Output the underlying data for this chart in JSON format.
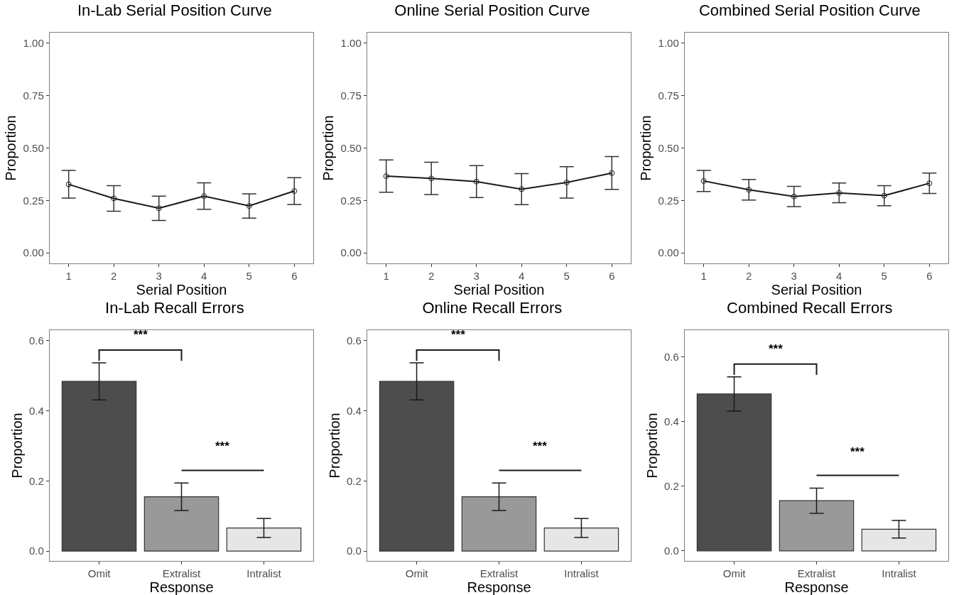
{
  "chart_data": [
    {
      "type": "line",
      "title": "In-Lab Serial Position Curve",
      "xlabel": "Serial Position",
      "ylabel": "Proportion",
      "x": [
        1,
        2,
        3,
        4,
        5,
        6
      ],
      "series": [
        {
          "color": "#1a1a1a",
          "values": [
            0.327,
            0.26,
            0.213,
            0.271,
            0.224,
            0.295
          ],
          "errors": [
            0.066,
            0.061,
            0.058,
            0.063,
            0.058,
            0.064
          ]
        }
      ],
      "xlim": [
        0.58,
        6.42
      ],
      "xticks": [
        1,
        2,
        3,
        4,
        5,
        6
      ],
      "ylim": [
        -0.05,
        1.05
      ],
      "yticks": [
        {
          "value": 0,
          "label": "0.00"
        },
        0.25,
        {
          "value": 0.5,
          "label": "0.50"
        },
        0.75,
        {
          "value": 1,
          "label": "1.00"
        }
      ],
      "marker": "circle",
      "line_style": "solid"
    },
    {
      "type": "line",
      "title": "Online Serial Position Curve",
      "xlabel": "Serial Position",
      "ylabel": "Proportion",
      "x": [
        1,
        2,
        3,
        4,
        5,
        6
      ],
      "series": [
        {
          "color": "#1a1a1a",
          "values": [
            0.366,
            0.355,
            0.34,
            0.304,
            0.336,
            0.381
          ],
          "errors": [
            0.077,
            0.077,
            0.076,
            0.074,
            0.075,
            0.078
          ]
        }
      ],
      "xlim": [
        0.58,
        6.42
      ],
      "xticks": [
        1,
        2,
        3,
        4,
        5,
        6
      ],
      "ylim": [
        -0.05,
        1.05
      ],
      "yticks": [
        {
          "value": 0,
          "label": "0.00"
        },
        0.25,
        {
          "value": 0.5,
          "label": "0.50"
        },
        0.75,
        {
          "value": 1,
          "label": "1.00"
        }
      ],
      "marker": "circle",
      "line_style": "solid"
    },
    {
      "type": "line",
      "title": "Combined Serial Position Curve",
      "xlabel": "Serial Position",
      "ylabel": "Proportion",
      "x": [
        1,
        2,
        3,
        4,
        5,
        6
      ],
      "series": [
        {
          "color": "#1a1a1a",
          "values": [
            0.343,
            0.301,
            0.269,
            0.286,
            0.273,
            0.332
          ],
          "errors": [
            0.05,
            0.049,
            0.048,
            0.047,
            0.048,
            0.049
          ]
        }
      ],
      "xlim": [
        0.58,
        6.42
      ],
      "xticks": [
        1,
        2,
        3,
        4,
        5,
        6
      ],
      "ylim": [
        -0.05,
        1.05
      ],
      "yticks": [
        {
          "value": 0,
          "label": "0.00"
        },
        0.25,
        {
          "value": 0.5,
          "label": "0.50"
        },
        0.75,
        {
          "value": 1,
          "label": "1.00"
        }
      ],
      "marker": "circle",
      "line_style": "solid"
    },
    {
      "type": "bar",
      "title": "In-Lab Recall Errors",
      "xlabel": "Response",
      "ylabel": "Proportion",
      "categories": [
        "Omit",
        "Extralist",
        "Intralist"
      ],
      "values": [
        0.484,
        0.155,
        0.066
      ],
      "colors": [
        "#4d4d4d",
        "#999999",
        "#e6e6e6"
      ],
      "errors": [
        0.053,
        0.039,
        0.027
      ],
      "ylim": [
        -0.028,
        0.63
      ],
      "yticks": [
        {
          "value": 0,
          "label": "0.0"
        },
        0.2,
        0.4,
        0.6
      ],
      "annotations": [
        "***",
        "***"
      ]
    },
    {
      "type": "bar",
      "title": "Online Recall Errors",
      "xlabel": "Response",
      "ylabel": "Proportion",
      "categories": [
        "Omit",
        "Extralist",
        "Intralist"
      ],
      "values": [
        0.484,
        0.155,
        0.066
      ],
      "colors": [
        "#4d4d4d",
        "#999999",
        "#e6e6e6"
      ],
      "errors": [
        0.053,
        0.039,
        0.027
      ],
      "ylim": [
        -0.028,
        0.63
      ],
      "yticks": [
        {
          "value": 0,
          "label": "0.0"
        },
        0.2,
        0.4,
        0.6
      ],
      "annotations": [
        "***",
        "***"
      ]
    },
    {
      "type": "bar",
      "title": "Combined Recall Errors",
      "xlabel": "Response",
      "ylabel": "Proportion",
      "categories": [
        "Omit",
        "Extralist",
        "Intralist"
      ],
      "values": [
        0.485,
        0.155,
        0.067
      ],
      "colors": [
        "#4d4d4d",
        "#999999",
        "#e6e6e6"
      ],
      "errors": [
        0.053,
        0.039,
        0.027
      ],
      "ylim": [
        -0.031,
        0.682
      ],
      "yticks": [
        {
          "value": 0,
          "label": "0.0"
        },
        0.2,
        0.4,
        0.6
      ],
      "annotations": [
        "***",
        "***"
      ]
    }
  ]
}
